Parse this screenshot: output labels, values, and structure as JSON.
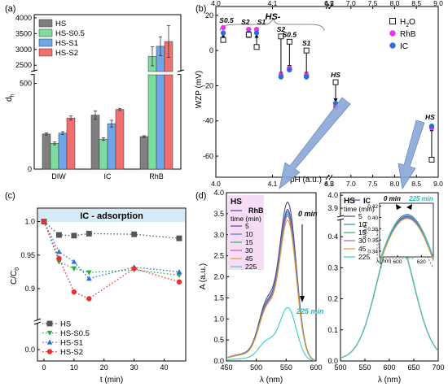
{
  "chart_data": [
    {
      "panel": "(a)",
      "type": "bar",
      "ylabel": "d",
      "ylabel_sub": "h",
      "categories": [
        "DIW",
        "IC",
        "RhB"
      ],
      "y_ticks_low": [
        0,
        500
      ],
      "y_ticks_high": [
        2500,
        3000,
        3500,
        4000
      ],
      "ylim_low": [
        0,
        550
      ],
      "ylim_high": [
        2300,
        4100
      ],
      "series": [
        {
          "name": "HS",
          "color": "#7f7f7f",
          "values": [
            205,
            315,
            190
          ],
          "err": [
            6,
            25,
            5
          ]
        },
        {
          "name": "HS-S0.5",
          "color": "#7fdc9f",
          "values": [
            150,
            175,
            2780
          ],
          "err": [
            8,
            8,
            300
          ]
        },
        {
          "name": "HS-S1",
          "color": "#6ea6e8",
          "values": [
            210,
            265,
            3100
          ],
          "err": [
            8,
            20,
            300
          ]
        },
        {
          "name": "HS-S2",
          "color": "#f07070",
          "values": [
            298,
            348,
            3250
          ],
          "err": [
            12,
            6,
            500
          ]
        }
      ]
    },
    {
      "panel": "(b)",
      "type": "scatter",
      "ylabel": "WZP (mV)",
      "xlabel_bottom": "pH (a.u.)",
      "xlabel_top": "pH (a.u.)",
      "x_ticks": [
        "4.0",
        "4.1",
        "4.2",
        "6.5",
        "7.0",
        "7.5",
        "8.0",
        "8.5",
        "9.0"
      ],
      "y_ticks": [
        20,
        0,
        -20,
        -40,
        -60
      ],
      "group_label": "HS-",
      "legend": [
        {
          "name": "H",
          "sub": "2",
          "tail": "O",
          "color": "#ffffff",
          "marker": "square"
        },
        {
          "name": "RhB",
          "color": "#ee33ee",
          "marker": "circle"
        },
        {
          "name": "IC",
          "color": "#2a6fd6",
          "marker": "circle"
        }
      ],
      "groups": [
        {
          "label": "S0.5",
          "x": 4.013,
          "h2o": 6,
          "rhb": 13,
          "ic": 10
        },
        {
          "label": "S2",
          "x": 4.058,
          "h2o": 9,
          "rhb": 12,
          "ic": 10
        },
        {
          "label": "S1",
          "x": 4.072,
          "h2o": 2,
          "rhb": 12,
          "ic": 10
        },
        {
          "label": "S2",
          "x": 4.115,
          "h2o": 8,
          "rhb": -14,
          "ic": -15
        },
        {
          "label": "S0.5",
          "x": 4.13,
          "h2o": 5,
          "rhb": -10,
          "ic": -11
        },
        {
          "label": "S1",
          "x": 4.16,
          "h2o": 0,
          "rhb": -14,
          "ic": -15
        },
        {
          "label": "HS",
          "x": 6.65,
          "h2o": -18,
          "rhb": -32,
          "ic": -30
        },
        {
          "label": "HS",
          "x": 8.85,
          "h2o": -62,
          "rhb": -44,
          "ic": -43
        }
      ]
    },
    {
      "panel": "(c)",
      "type": "line",
      "title": "IC - adsorption",
      "xlabel": "t (min)",
      "ylabel": "C/C",
      "ylabel_sub": "0",
      "x_ticks": [
        0,
        10,
        20,
        30,
        40
      ],
      "y_ticks": [
        "0.0",
        "0.9",
        "0.95",
        "1.0"
      ],
      "x": [
        0,
        5,
        10,
        15,
        30,
        45
      ],
      "series": [
        {
          "name": "HS",
          "color": "#555555",
          "marker": "square",
          "values": [
            1.0,
            0.98,
            0.979,
            0.982,
            0.981,
            0.975
          ]
        },
        {
          "name": "HS-S0.5",
          "color": "#2aa84a",
          "marker": "tri-down",
          "values": [
            1.0,
            0.94,
            0.93,
            0.924,
            0.928,
            0.92
          ]
        },
        {
          "name": "HS-S1",
          "color": "#2a6fd6",
          "marker": "tri-up",
          "values": [
            1.0,
            0.955,
            0.94,
            0.915,
            0.932,
            0.925
          ]
        },
        {
          "name": "HS-S2",
          "color": "#e83030",
          "marker": "circle",
          "values": [
            1.0,
            0.945,
            0.895,
            0.885,
            0.93,
            0.91
          ]
        }
      ]
    },
    {
      "panel": "(d)",
      "type": "line",
      "ylabel": "A (a.u.)",
      "xlabel": "λ (nm)",
      "left": {
        "tag": "HS",
        "dye": "RhB",
        "legend_title": "time (min)",
        "x_ticks": [
          450,
          500,
          550,
          600
        ],
        "y_ticks": [
          "0.0",
          "0.5",
          "1.0",
          "1.5",
          "2.0",
          "2.5",
          "3.0",
          "3.5",
          "4.0"
        ],
        "annot_start": "0 min",
        "annot_end": "225 min",
        "peaks": [
          {
            "t": "0",
            "color": "#4a4a8a",
            "peak": 3.78
          },
          {
            "t": "5",
            "color": "#5a3aa0",
            "peak": 3.6
          },
          {
            "t": "10",
            "color": "#3f7fd0",
            "peak": 3.55
          },
          {
            "t": "15",
            "color": "#3aaa6a",
            "peak": 3.5
          },
          {
            "t": "30",
            "color": "#b060c0",
            "peak": 3.45
          },
          {
            "t": "45",
            "color": "#d9a030",
            "peak": 3.35
          },
          {
            "t": "225",
            "color": "#33cccc",
            "peak": 1.27
          }
        ]
      },
      "right": {
        "tag": "HS",
        "dye": "IC",
        "legend_title": "time (min)",
        "x_ticks": [
          500,
          550,
          600,
          650,
          700
        ],
        "y_ticks": [
          "0.0",
          "0.1",
          "0.2",
          "0.3",
          "0.4",
          "3.9",
          "4.0"
        ],
        "inset_ylabel": "A (a.u.)",
        "inset_xlabel": "λ (nm)",
        "inset_x_ticks": [
          600,
          620
        ],
        "inset_y_ticks": [
          "0.34",
          "0.36",
          "0.38",
          "0.40",
          "0.42"
        ],
        "annot_start": "0 min",
        "annot_end": "225 min",
        "peaks": [
          {
            "t": "0",
            "color": "#4a4a8a",
            "peak": 0.405
          },
          {
            "t": "5",
            "color": "#5a3aa0",
            "peak": 0.402
          },
          {
            "t": "10",
            "color": "#3f7fd0",
            "peak": 0.401
          },
          {
            "t": "15",
            "color": "#3aaa6a",
            "peak": 0.4
          },
          {
            "t": "30",
            "color": "#b060c0",
            "peak": 0.399
          },
          {
            "t": "45",
            "color": "#d9a030",
            "peak": 0.398
          },
          {
            "t": "225",
            "color": "#33cccc",
            "peak": 0.404
          }
        ]
      }
    }
  ]
}
